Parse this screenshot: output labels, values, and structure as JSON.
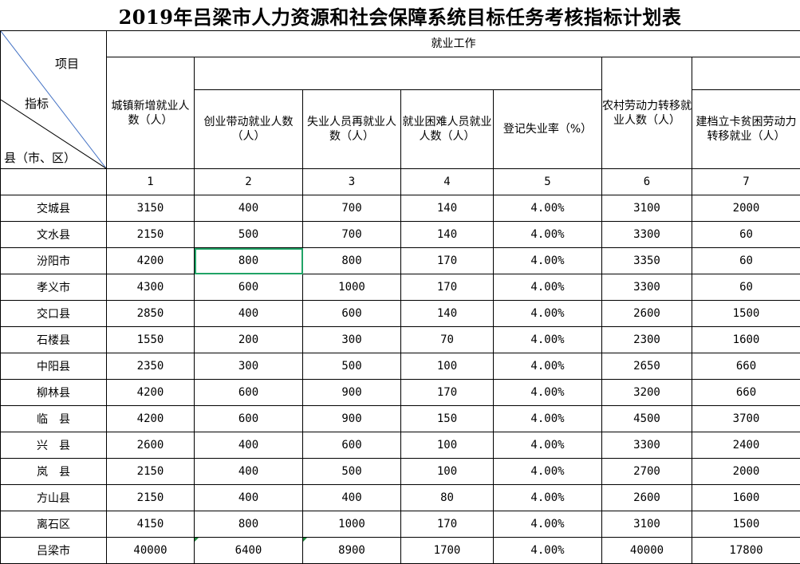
{
  "title": "2019年吕梁市人力资源和社会保障系统目标任务考核指标计划表",
  "corner": {
    "item": "项目",
    "indicator": "指标",
    "county": "县（市、区）"
  },
  "group_header": "就业工作",
  "columns": [
    {
      "label": "城镇新增就业人数（人）",
      "num": "1"
    },
    {
      "label": "创业带动就业人数（人）",
      "num": "2"
    },
    {
      "label": "失业人员再就业人数（人）",
      "num": "3"
    },
    {
      "label": "就业困难人员就业人数（人）",
      "num": "4"
    },
    {
      "label": "登记失业率（%）",
      "num": "5"
    },
    {
      "label": "农村劳动力转移就业人数（人）",
      "num": "6"
    },
    {
      "label": "建档立卡贫困劳动力转移就业（人）",
      "num": "7"
    }
  ],
  "rows": [
    {
      "county": "交城县",
      "values": [
        "3150",
        "400",
        "700",
        "140",
        "4.00%",
        "3100",
        "2000"
      ]
    },
    {
      "county": "文水县",
      "values": [
        "2150",
        "500",
        "700",
        "140",
        "4.00%",
        "3300",
        "60"
      ]
    },
    {
      "county": "汾阳市",
      "values": [
        "4200",
        "800",
        "800",
        "170",
        "4.00%",
        "3350",
        "60"
      ]
    },
    {
      "county": "孝义市",
      "values": [
        "4300",
        "600",
        "1000",
        "170",
        "4.00%",
        "3300",
        "60"
      ]
    },
    {
      "county": "交口县",
      "values": [
        "2850",
        "400",
        "600",
        "140",
        "4.00%",
        "2600",
        "1500"
      ]
    },
    {
      "county": "石楼县",
      "values": [
        "1550",
        "200",
        "300",
        "70",
        "4.00%",
        "2300",
        "1600"
      ]
    },
    {
      "county": "中阳县",
      "values": [
        "2350",
        "300",
        "500",
        "100",
        "4.00%",
        "2650",
        "660"
      ]
    },
    {
      "county": "柳林县",
      "values": [
        "4200",
        "600",
        "900",
        "170",
        "4.00%",
        "3200",
        "660"
      ]
    },
    {
      "county": "临　县",
      "values": [
        "4200",
        "600",
        "900",
        "150",
        "4.00%",
        "4500",
        "3700"
      ]
    },
    {
      "county": "兴　县",
      "values": [
        "2600",
        "400",
        "600",
        "100",
        "4.00%",
        "3300",
        "2400"
      ]
    },
    {
      "county": "岚　县",
      "values": [
        "2150",
        "400",
        "500",
        "100",
        "4.00%",
        "2700",
        "2000"
      ]
    },
    {
      "county": "方山县",
      "values": [
        "2150",
        "400",
        "400",
        "80",
        "4.00%",
        "2600",
        "1600"
      ]
    },
    {
      "county": "离石区",
      "values": [
        "4150",
        "800",
        "1000",
        "170",
        "4.00%",
        "3100",
        "1500"
      ]
    },
    {
      "county": "吕梁市",
      "values": [
        "40000",
        "6400",
        "8900",
        "1700",
        "4.00%",
        "40000",
        "17800"
      ]
    }
  ],
  "colors": {
    "selection": "#21a366",
    "diagonal_line": "#4472c4",
    "error_marker": "#1e8a3c"
  }
}
